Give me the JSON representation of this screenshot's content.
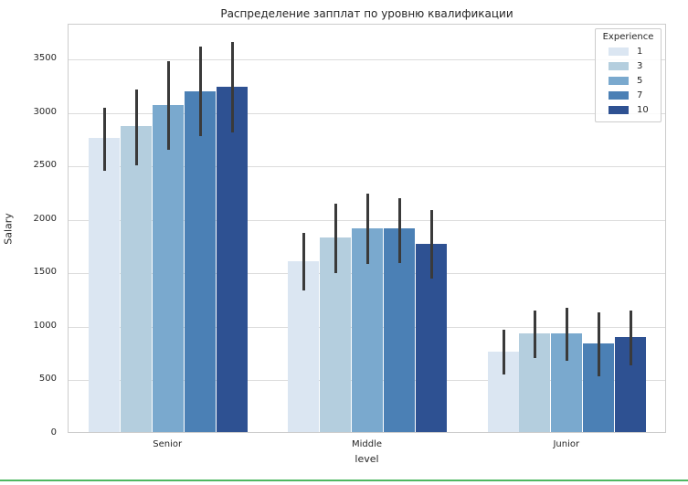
{
  "chart_data": {
    "type": "bar",
    "title": "Распределение запплат по уровню квалификации",
    "xlabel": "level",
    "ylabel": "Salary",
    "categories": [
      "Senior",
      "Middle",
      "Junior"
    ],
    "legend_title": "Experience",
    "legend_position": "upper right",
    "grid": true,
    "yticks": [
      0,
      500,
      1000,
      1500,
      2000,
      2500,
      3000,
      3500
    ],
    "ylim": [
      0,
      3824
    ],
    "errorbar_color": "#3a3a3a",
    "series": [
      {
        "name": "1",
        "color": "#dbe6f2",
        "values": [
          2745,
          1600,
          750
        ],
        "ci": [
          [
            2460,
            3050
          ],
          [
            1340,
            1880
          ],
          [
            555,
            975
          ]
        ]
      },
      {
        "name": "3",
        "color": "#b4cede",
        "values": [
          2860,
          1820,
          925
        ],
        "ci": [
          [
            2510,
            3220
          ],
          [
            1500,
            2150
          ],
          [
            710,
            1150
          ]
        ]
      },
      {
        "name": "5",
        "color": "#7aa9ce",
        "values": [
          3055,
          1905,
          925
        ],
        "ci": [
          [
            2650,
            3480
          ],
          [
            1590,
            2245
          ],
          [
            685,
            1180
          ]
        ]
      },
      {
        "name": "7",
        "color": "#4b80b5",
        "values": [
          3185,
          1900,
          830
        ],
        "ci": [
          [
            2780,
            3620
          ],
          [
            1600,
            2205
          ],
          [
            540,
            1135
          ]
        ]
      },
      {
        "name": "10",
        "color": "#2e5192",
        "values": [
          3230,
          1760,
          890
        ],
        "ci": [
          [
            2815,
            3660
          ],
          [
            1450,
            2090
          ],
          [
            640,
            1150
          ]
        ]
      }
    ]
  },
  "footer": {
    "divider_color": "#4fb862"
  }
}
